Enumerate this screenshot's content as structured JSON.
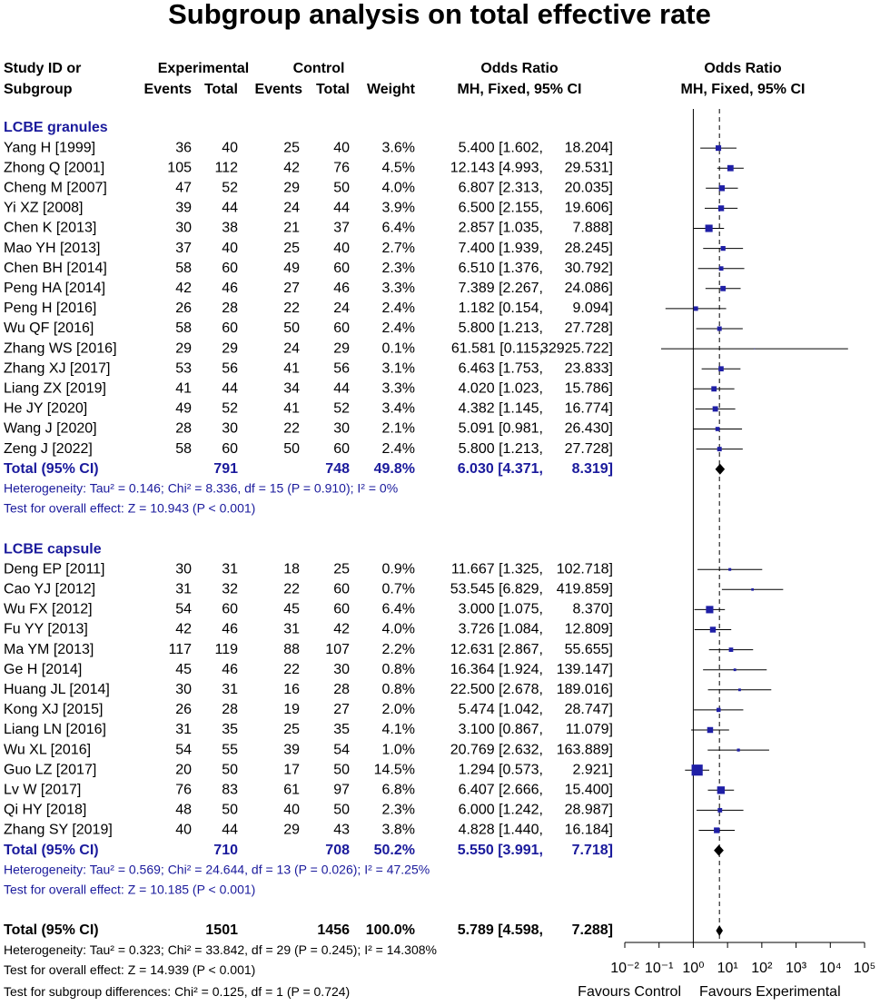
{
  "chart_data": {
    "type": "forest",
    "title": "Subgroup analysis on total effective rate",
    "headers": {
      "study1": "Study ID or",
      "study2": "Subgroup",
      "exp": "Experimental",
      "exp_events": "Events",
      "exp_total": "Total",
      "ctrl": "Control",
      "ctrl_events": "Events",
      "ctrl_total": "Total",
      "weight": "Weight",
      "or1": "Odds Ratio",
      "or2": "MH, Fixed, 95% CI",
      "plot1": "Odds Ratio",
      "plot2": "MH, Fixed, 95% CI"
    },
    "log_x": true,
    "xlim": [
      0.01,
      100000
    ],
    "xticks": [
      {
        "value": 0.01,
        "label": "10⁻²"
      },
      {
        "value": 0.1,
        "label": "10⁻¹"
      },
      {
        "value": 1,
        "label": "10⁰"
      },
      {
        "value": 10,
        "label": "10¹"
      },
      {
        "value": 100,
        "label": "10²"
      },
      {
        "value": 1000,
        "label": "10³"
      },
      {
        "value": 10000,
        "label": "10⁴"
      },
      {
        "value": 100000,
        "label": "10⁵"
      }
    ],
    "mark_color": "#1f1fa6",
    "groups": [
      {
        "name": "LCBE granules",
        "studies": [
          {
            "n": "Yang H [1999]",
            "ee": 36,
            "et": 40,
            "ce": 25,
            "ct": 40,
            "wl": "3.6%",
            "w": 3.6,
            "l1": "5.400 [1.602,",
            "l2": "18.204]",
            "or": 5.4,
            "lo": 1.602,
            "hi": 18.204
          },
          {
            "n": "Zhong Q [2001]",
            "ee": 105,
            "et": 112,
            "ce": 42,
            "ct": 76,
            "wl": "4.5%",
            "w": 4.5,
            "l1": "12.143 [4.993,",
            "l2": "29.531]",
            "or": 12.143,
            "lo": 4.993,
            "hi": 29.531
          },
          {
            "n": "Cheng M [2007]",
            "ee": 47,
            "et": 52,
            "ce": 29,
            "ct": 50,
            "wl": "4.0%",
            "w": 4.0,
            "l1": "6.807 [2.313,",
            "l2": "20.035]",
            "or": 6.807,
            "lo": 2.313,
            "hi": 20.035
          },
          {
            "n": "Yi XZ [2008]",
            "ee": 39,
            "et": 44,
            "ce": 24,
            "ct": 44,
            "wl": "3.9%",
            "w": 3.9,
            "l1": "6.500 [2.155,",
            "l2": "19.606]",
            "or": 6.5,
            "lo": 2.155,
            "hi": 19.606
          },
          {
            "n": "Chen K [2013]",
            "ee": 30,
            "et": 38,
            "ce": 21,
            "ct": 37,
            "wl": "6.4%",
            "w": 6.4,
            "l1": "2.857 [1.035,",
            "l2": "7.888]",
            "or": 2.857,
            "lo": 1.035,
            "hi": 7.888
          },
          {
            "n": "Mao YH [2013]",
            "ee": 37,
            "et": 40,
            "ce": 25,
            "ct": 40,
            "wl": "2.7%",
            "w": 2.7,
            "l1": "7.400 [1.939,",
            "l2": "28.245]",
            "or": 7.4,
            "lo": 1.939,
            "hi": 28.245
          },
          {
            "n": "Chen BH [2014]",
            "ee": 58,
            "et": 60,
            "ce": 49,
            "ct": 60,
            "wl": "2.3%",
            "w": 2.3,
            "l1": "6.510 [1.376,",
            "l2": "30.792]",
            "or": 6.51,
            "lo": 1.376,
            "hi": 30.792
          },
          {
            "n": "Peng HA [2014]",
            "ee": 42,
            "et": 46,
            "ce": 27,
            "ct": 46,
            "wl": "3.3%",
            "w": 3.3,
            "l1": "7.389 [2.267,",
            "l2": "24.086]",
            "or": 7.389,
            "lo": 2.267,
            "hi": 24.086
          },
          {
            "n": "Peng H [2016]",
            "ee": 26,
            "et": 28,
            "ce": 22,
            "ct": 24,
            "wl": "2.4%",
            "w": 2.4,
            "l1": "1.182 [0.154,",
            "l2": "9.094]",
            "or": 1.182,
            "lo": 0.154,
            "hi": 9.094
          },
          {
            "n": "Wu QF [2016]",
            "ee": 58,
            "et": 60,
            "ce": 50,
            "ct": 60,
            "wl": "2.4%",
            "w": 2.4,
            "l1": "5.800 [1.213,",
            "l2": "27.728]",
            "or": 5.8,
            "lo": 1.213,
            "hi": 27.728
          },
          {
            "n": "Zhang WS [2016]",
            "ee": 29,
            "et": 29,
            "ce": 24,
            "ct": 29,
            "wl": "0.1%",
            "w": 0.1,
            "l1": "61.581 [0.115,",
            "l2": "32925.722]",
            "or": 61.581,
            "lo": 0.115,
            "hi": 32925.722
          },
          {
            "n": "Zhang XJ [2017]",
            "ee": 53,
            "et": 56,
            "ce": 41,
            "ct": 56,
            "wl": "3.1%",
            "w": 3.1,
            "l1": "6.463 [1.753,",
            "l2": "23.833]",
            "or": 6.463,
            "lo": 1.753,
            "hi": 23.833
          },
          {
            "n": "Liang ZX [2019]",
            "ee": 41,
            "et": 44,
            "ce": 34,
            "ct": 44,
            "wl": "3.3%",
            "w": 3.3,
            "l1": "4.020 [1.023,",
            "l2": "15.786]",
            "or": 4.02,
            "lo": 1.023,
            "hi": 15.786
          },
          {
            "n": "He JY [2020]",
            "ee": 49,
            "et": 52,
            "ce": 41,
            "ct": 52,
            "wl": "3.4%",
            "w": 3.4,
            "l1": "4.382 [1.145,",
            "l2": "16.774]",
            "or": 4.382,
            "lo": 1.145,
            "hi": 16.774
          },
          {
            "n": "Wang J [2020]",
            "ee": 28,
            "et": 30,
            "ce": 22,
            "ct": 30,
            "wl": "2.1%",
            "w": 2.1,
            "l1": "5.091 [0.981,",
            "l2": "26.430]",
            "or": 5.091,
            "lo": 0.981,
            "hi": 26.43
          },
          {
            "n": "Zeng J [2022]",
            "ee": 58,
            "et": 60,
            "ce": 50,
            "ct": 60,
            "wl": "2.4%",
            "w": 2.4,
            "l1": "5.800 [1.213,",
            "l2": "27.728]",
            "or": 5.8,
            "lo": 1.213,
            "hi": 27.728
          }
        ],
        "total": {
          "n": "Total (95% CI)",
          "et": 791,
          "ct": 748,
          "wl": "49.8%",
          "l1": "6.030 [4.371,",
          "l2": "8.319]",
          "or": 6.03,
          "lo": 4.371,
          "hi": 8.319
        },
        "notes": [
          "Heterogeneity: Tau² = 0.146; Chi² = 8.336, df = 15 (P = 0.910); I² = 0%",
          "Test for overall effect: Z = 10.943 (P < 0.001)"
        ]
      },
      {
        "name": "LCBE capsule",
        "studies": [
          {
            "n": "Deng EP [2011]",
            "ee": 30,
            "et": 31,
            "ce": 18,
            "ct": 25,
            "wl": "0.9%",
            "w": 0.9,
            "l1": "11.667 [1.325,",
            "l2": "102.718]",
            "or": 11.667,
            "lo": 1.325,
            "hi": 102.718
          },
          {
            "n": "Cao YJ [2012]",
            "ee": 31,
            "et": 32,
            "ce": 22,
            "ct": 60,
            "wl": "0.7%",
            "w": 0.7,
            "l1": "53.545 [6.829,",
            "l2": "419.859]",
            "or": 53.545,
            "lo": 6.829,
            "hi": 419.859
          },
          {
            "n": "Wu FX [2012]",
            "ee": 54,
            "et": 60,
            "ce": 45,
            "ct": 60,
            "wl": "6.4%",
            "w": 6.4,
            "l1": "3.000 [1.075,",
            "l2": "8.370]",
            "or": 3.0,
            "lo": 1.075,
            "hi": 8.37
          },
          {
            "n": "Fu YY [2013]",
            "ee": 42,
            "et": 46,
            "ce": 31,
            "ct": 42,
            "wl": "4.0%",
            "w": 4.0,
            "l1": "3.726 [1.084,",
            "l2": "12.809]",
            "or": 3.726,
            "lo": 1.084,
            "hi": 12.809
          },
          {
            "n": "Ma YM [2013]",
            "ee": 117,
            "et": 119,
            "ce": 88,
            "ct": 107,
            "wl": "2.2%",
            "w": 2.2,
            "l1": "12.631 [2.867,",
            "l2": "55.655]",
            "or": 12.631,
            "lo": 2.867,
            "hi": 55.655
          },
          {
            "n": "Ge H [2014]",
            "ee": 45,
            "et": 46,
            "ce": 22,
            "ct": 30,
            "wl": "0.8%",
            "w": 0.8,
            "l1": "16.364 [1.924,",
            "l2": "139.147]",
            "or": 16.364,
            "lo": 1.924,
            "hi": 139.147
          },
          {
            "n": "Huang JL [2014]",
            "ee": 30,
            "et": 31,
            "ce": 16,
            "ct": 28,
            "wl": "0.8%",
            "w": 0.8,
            "l1": "22.500 [2.678,",
            "l2": "189.016]",
            "or": 22.5,
            "lo": 2.678,
            "hi": 189.016
          },
          {
            "n": "Kong XJ [2015]",
            "ee": 26,
            "et": 28,
            "ce": 19,
            "ct": 27,
            "wl": "2.0%",
            "w": 2.0,
            "l1": "5.474 [1.042,",
            "l2": "28.747]",
            "or": 5.474,
            "lo": 1.042,
            "hi": 28.747
          },
          {
            "n": "Liang LN [2016]",
            "ee": 31,
            "et": 35,
            "ce": 25,
            "ct": 35,
            "wl": "4.1%",
            "w": 4.1,
            "l1": "3.100 [0.867,",
            "l2": "11.079]",
            "or": 3.1,
            "lo": 0.867,
            "hi": 11.079
          },
          {
            "n": "Wu XL [2016]",
            "ee": 54,
            "et": 55,
            "ce": 39,
            "ct": 54,
            "wl": "1.0%",
            "w": 1.0,
            "l1": "20.769 [2.632,",
            "l2": "163.889]",
            "or": 20.769,
            "lo": 2.632,
            "hi": 163.889
          },
          {
            "n": "Guo LZ [2017]",
            "ee": 20,
            "et": 50,
            "ce": 17,
            "ct": 50,
            "wl": "14.5%",
            "w": 14.5,
            "l1": "1.294 [0.573,",
            "l2": "2.921]",
            "or": 1.294,
            "lo": 0.573,
            "hi": 2.921
          },
          {
            "n": "Lv W [2017]",
            "ee": 76,
            "et": 83,
            "ce": 61,
            "ct": 97,
            "wl": "6.8%",
            "w": 6.8,
            "l1": "6.407 [2.666,",
            "l2": "15.400]",
            "or": 6.407,
            "lo": 2.666,
            "hi": 15.4
          },
          {
            "n": "Qi HY [2018]",
            "ee": 48,
            "et": 50,
            "ce": 40,
            "ct": 50,
            "wl": "2.3%",
            "w": 2.3,
            "l1": "6.000 [1.242,",
            "l2": "28.987]",
            "or": 6.0,
            "lo": 1.242,
            "hi": 28.987
          },
          {
            "n": "Zhang SY [2019]",
            "ee": 40,
            "et": 44,
            "ce": 29,
            "ct": 43,
            "wl": "3.8%",
            "w": 3.8,
            "l1": "4.828 [1.440,",
            "l2": "16.184]",
            "or": 4.828,
            "lo": 1.44,
            "hi": 16.184
          }
        ],
        "total": {
          "n": "Total (95% CI)",
          "et": 710,
          "ct": 708,
          "wl": "50.2%",
          "l1": "5.550 [3.991,",
          "l2": "7.718]",
          "or": 5.55,
          "lo": 3.991,
          "hi": 7.718
        },
        "notes": [
          "Heterogeneity: Tau² = 0.569; Chi² = 24.644, df = 13 (P = 0.026); I² = 47.25%",
          "Test for overall effect: Z = 10.185 (P < 0.001)"
        ]
      }
    ],
    "overall": {
      "n": "Total (95% CI)",
      "et": 1501,
      "ct": 1456,
      "wl": "100.0%",
      "l1": "5.789 [4.598,",
      "l2": "7.288]",
      "or": 5.789,
      "lo": 4.598,
      "hi": 7.288
    },
    "overall_notes": [
      "Heterogeneity: Tau² = 0.323; Chi² = 33.842, df = 29 (P = 0.245); I² = 14.308%",
      "Test for overall effect: Z = 14.939 (P < 0.001)",
      "Test for subgroup differences: Chi² = 0.125, df = 1 (P = 0.724)"
    ],
    "favours_left": "Favours Control",
    "favours_right": "Favours Experimental"
  }
}
